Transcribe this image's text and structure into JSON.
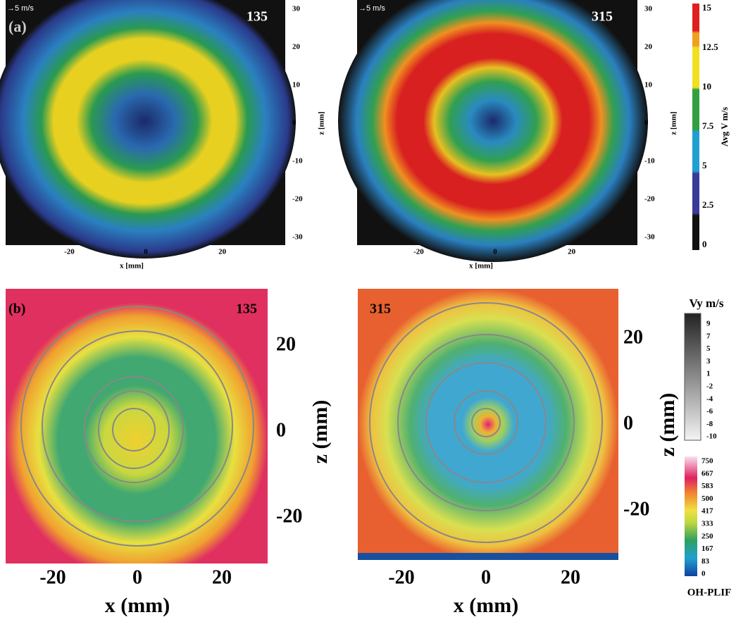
{
  "panel_a": {
    "label": "(a)",
    "scale_label": "→5 m/s",
    "x_label": "x [mm]",
    "z_label": "z [mm]",
    "xticks": [
      -20,
      0,
      20
    ],
    "zticks": [
      30,
      20,
      10,
      0,
      -10,
      -20,
      -30
    ],
    "frames": [
      135,
      315
    ]
  },
  "colorbar_v": {
    "label": "Avg V m/s",
    "ticks": [
      15,
      12.5,
      10,
      7.5,
      5,
      2.5,
      0
    ]
  },
  "panel_b": {
    "label": "(b)",
    "x_label": "x (mm)",
    "z_label": "z (mm)",
    "xticks": [
      -20,
      0,
      20
    ],
    "zticks": [
      20,
      0,
      -20
    ],
    "frames": [
      135,
      315
    ]
  },
  "colorbar_vy": {
    "label": "Vy m/s",
    "ticks": [
      9,
      7,
      5,
      3,
      1,
      -2,
      -4,
      -6,
      -8,
      -10
    ]
  },
  "colorbar_oh": {
    "label": "OH-PLIF",
    "ticks": [
      750,
      667,
      583,
      500,
      417,
      333,
      250,
      167,
      83,
      0
    ]
  }
}
